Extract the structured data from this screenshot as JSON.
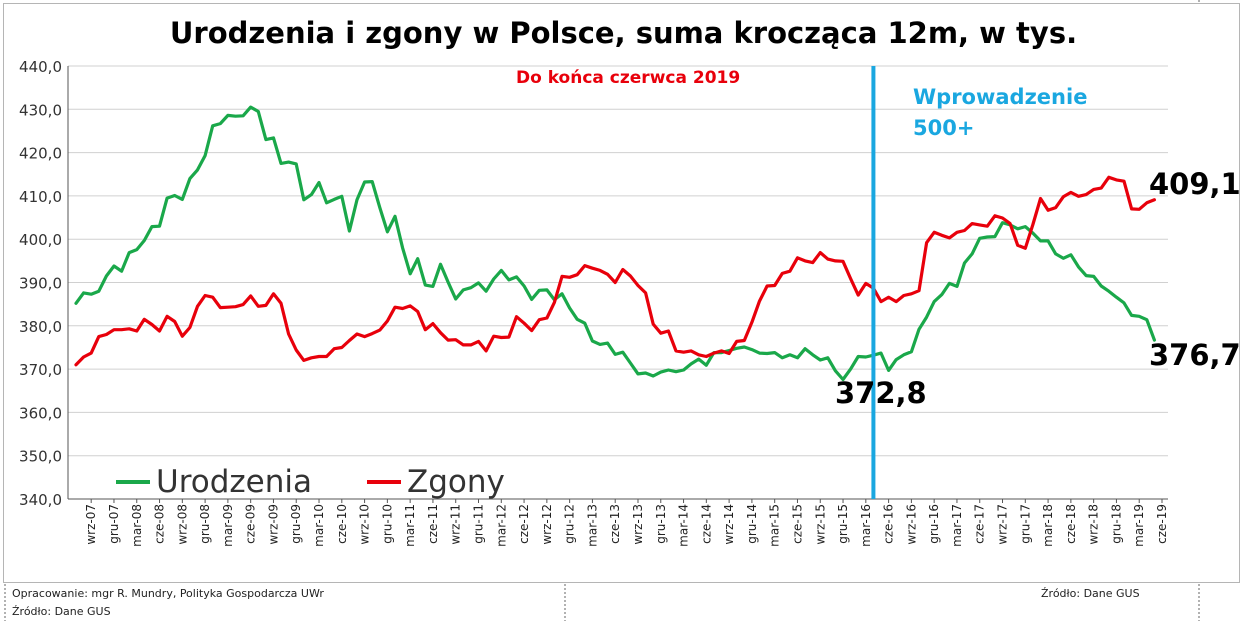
{
  "chart_data": {
    "type": "line",
    "title": "Urodzenia i zgony w Polsce, suma krocząca 12m, w tys.",
    "subtitle": "Do końca czerwca 2019",
    "ylim": [
      340,
      440
    ],
    "yticks": [
      "340,0",
      "350,0",
      "360,0",
      "370,0",
      "380,0",
      "390,0",
      "400,0",
      "410,0",
      "420,0",
      "430,0",
      "440,0"
    ],
    "yvalues": [
      340,
      350,
      360,
      370,
      380,
      390,
      400,
      410,
      420,
      430,
      440
    ],
    "x_start": "2007-07",
    "x_end": "2019-06",
    "xtick_labels": [
      "wrz-07",
      "gru-07",
      "mar-08",
      "cze-08",
      "wrz-08",
      "gru-08",
      "mar-09",
      "cze-09",
      "wrz-09",
      "gru-09",
      "mar-10",
      "cze-10",
      "wrz-10",
      "gru-10",
      "mar-11",
      "cze-11",
      "wrz-11",
      "gru-11",
      "mar-12",
      "cze-12",
      "wrz-12",
      "gru-12",
      "mar-13",
      "cze-13",
      "wrz-13",
      "gru-13",
      "mar-14",
      "cze-14",
      "wrz-14",
      "gru-14",
      "mar-15",
      "cze-15",
      "wrz-15",
      "gru-15",
      "mar-16",
      "cze-16",
      "wrz-16",
      "gru-16",
      "mar-17",
      "cze-17",
      "wrz-17",
      "gru-17",
      "mar-18",
      "cze-18",
      "wrz-18",
      "gru-18",
      "mar-19",
      "cze-19"
    ],
    "annotation_line": {
      "x": "2016-04",
      "label_line1": "Wprowadzenie",
      "label_line2": "500+",
      "color": "#1aa7e0"
    },
    "point_labels": [
      {
        "text": "372,8",
        "series": "Urodzenia",
        "x": "2016-03"
      },
      {
        "text": "409,1",
        "series": "Zgony",
        "x": "2019-06"
      },
      {
        "text": "376,7",
        "series": "Urodzenia",
        "x": "2019-06"
      }
    ],
    "legend_position": "bottom-left",
    "series": [
      {
        "name": "Urodzenia",
        "color": "#1aa84a",
        "values": [
          385.2,
          387.6,
          387.3,
          388.0,
          391.5,
          393.8,
          392.6,
          396.9,
          397.6,
          399.7,
          402.9,
          403.0,
          409.5,
          410.1,
          409.2,
          414.0,
          416.0,
          419.3,
          426.2,
          426.7,
          428.6,
          428.4,
          428.5,
          430.5,
          429.5,
          423.0,
          423.4,
          417.5,
          417.8,
          417.4,
          409.1,
          410.3,
          413.1,
          408.4,
          409.2,
          409.9,
          401.9,
          409.1,
          413.2,
          413.3,
          407.3,
          401.7,
          405.3,
          398.0,
          392.0,
          395.5,
          389.4,
          389.1,
          394.2,
          390.1,
          386.2,
          388.3,
          388.8,
          389.9,
          388.0,
          390.8,
          392.8,
          390.6,
          391.3,
          389.2,
          386.1,
          388.2,
          388.3,
          386.0,
          387.4,
          384.1,
          381.5,
          380.6,
          376.5,
          375.7,
          376.0,
          373.4,
          373.9,
          371.4,
          368.9,
          369.1,
          368.4,
          369.3,
          369.8,
          369.4,
          369.8,
          371.2,
          372.3,
          370.9,
          373.8,
          373.8,
          374.3,
          374.8,
          375.1,
          374.5,
          373.7,
          373.6,
          373.8,
          372.6,
          373.3,
          372.6,
          374.7,
          373.3,
          372.1,
          372.6,
          369.6,
          367.6,
          370.0,
          372.9,
          372.8,
          373.2,
          373.7,
          369.7,
          372.2,
          373.3,
          374.0,
          379.2,
          382.0,
          385.6,
          387.2,
          389.8,
          389.1,
          394.5,
          396.6,
          400.2,
          400.5,
          400.6,
          403.8,
          403.3,
          402.4,
          402.9,
          401.4,
          399.6,
          399.6,
          396.6,
          395.6,
          396.4,
          393.6,
          391.6,
          391.4,
          389.2,
          388.0,
          386.6,
          385.3,
          382.4,
          382.2,
          381.4,
          376.7
        ]
      },
      {
        "name": "Zgony",
        "color": "#e8000b",
        "values": [
          371.0,
          372.8,
          373.7,
          377.5,
          378.0,
          379.1,
          379.1,
          379.3,
          378.8,
          381.5,
          380.3,
          378.8,
          382.2,
          381.0,
          377.6,
          379.6,
          384.5,
          387.0,
          386.6,
          384.2,
          384.3,
          384.4,
          384.9,
          386.9,
          384.5,
          384.7,
          387.4,
          385.2,
          378.1,
          374.4,
          372.0,
          372.6,
          372.9,
          372.9,
          374.7,
          375.0,
          376.6,
          378.1,
          377.5,
          378.2,
          379.0,
          381.1,
          384.3,
          384.0,
          384.6,
          383.3,
          379.1,
          380.5,
          378.4,
          376.7,
          376.8,
          375.6,
          375.6,
          376.4,
          374.2,
          377.6,
          377.3,
          377.4,
          382.1,
          380.6,
          378.9,
          381.4,
          381.8,
          385.4,
          391.4,
          391.2,
          391.8,
          393.9,
          393.3,
          392.8,
          391.9,
          390.0,
          393.0,
          391.5,
          389.3,
          387.6,
          380.4,
          378.3,
          378.8,
          374.2,
          373.9,
          374.2,
          373.3,
          372.9,
          373.7,
          374.2,
          373.6,
          376.4,
          376.6,
          380.8,
          385.7,
          389.2,
          389.3,
          392.1,
          392.6,
          395.7,
          395.0,
          394.6,
          396.9,
          395.4,
          395.0,
          394.9,
          390.9,
          387.1,
          389.8,
          388.7,
          385.6,
          386.6,
          385.6,
          387.0,
          387.4,
          388.1,
          399.2,
          401.6,
          400.9,
          400.3,
          401.6,
          402.0,
          403.6,
          403.3,
          403.0,
          405.4,
          404.9,
          403.6,
          398.6,
          397.9,
          403.4,
          409.4,
          406.7,
          407.3,
          409.8,
          410.8,
          409.9,
          410.3,
          411.5,
          411.8,
          414.3,
          413.7,
          413.4,
          407.0,
          406.9,
          408.4,
          409.1
        ]
      }
    ]
  },
  "labels": {
    "annotation_line1": "Wprowadzenie",
    "annotation_line2": "500+",
    "point_372": "372,8",
    "point_409": "409,1",
    "point_376": "376,7"
  },
  "legend": {
    "urodzenia": "Urodzenia",
    "zgony": "Zgony",
    "urodzenia_color": "#1aa84a",
    "zgony_color": "#e8000b"
  },
  "footer": {
    "author": "Opracowanie: mgr R. Mundry, Polityka Gospodarcza UWr",
    "source_left": "Źródło: Dane GUS",
    "source_right": "Źródło: Dane GUS"
  }
}
